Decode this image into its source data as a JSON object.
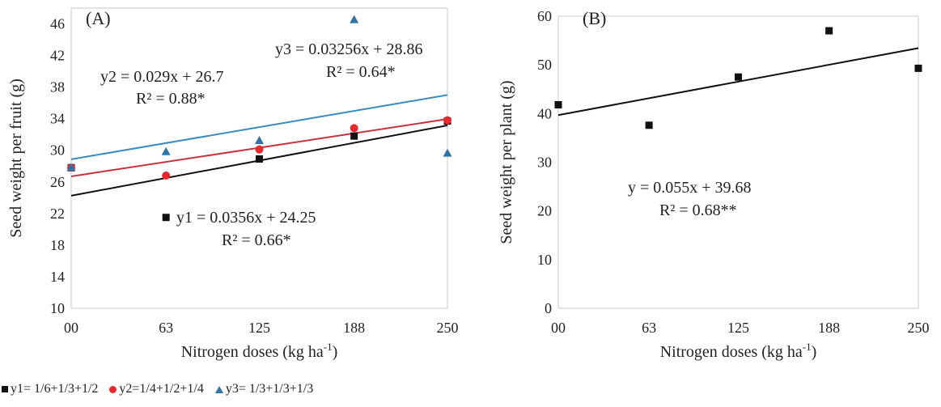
{
  "chart_data": [
    {
      "type": "scatter",
      "panel_label": "(A)",
      "xlabel": "Nitrogen doses (kg ha",
      "xlabel_sup": "-1",
      "xlabel_tail": ")",
      "ylabel": "Seed weight per fruit (g)",
      "x_tick_labels": [
        "00",
        "63",
        "125",
        "188",
        "250"
      ],
      "x_ticks": [
        0,
        63,
        125,
        188,
        250
      ],
      "xlim": [
        0,
        250
      ],
      "ylim": [
        10,
        48
      ],
      "y_ticks": [
        10,
        14,
        18,
        22,
        26,
        30,
        34,
        38,
        42,
        46
      ],
      "grid": false,
      "series": [
        {
          "name": "y1= 1/6+1/3+1/2",
          "marker": "square",
          "color": "#111111",
          "trend_color": "#111111",
          "x": [
            0,
            63,
            125,
            188,
            250
          ],
          "y": [
            27.8,
            21.5,
            28.9,
            31.8,
            33.7
          ],
          "trend": {
            "slope": 0.0356,
            "intercept": 24.25
          }
        },
        {
          "name": "y2=1/4+1/2+1/4",
          "marker": "circle",
          "color": "#e8282c",
          "trend_color": "#c8333b",
          "x": [
            0,
            63,
            125,
            188,
            250
          ],
          "y": [
            27.8,
            26.8,
            30.1,
            32.8,
            33.8
          ],
          "trend": {
            "slope": 0.029,
            "intercept": 26.7
          }
        },
        {
          "name": "y3= 1/3+1/3+1/3",
          "marker": "triangle",
          "color": "#2e74a6",
          "trend_color": "#3a8bbf",
          "x": [
            0,
            63,
            125,
            188,
            250
          ],
          "y": [
            27.8,
            29.8,
            31.2,
            46.5,
            29.6
          ],
          "trend": {
            "slope": 0.03256,
            "intercept": 28.86
          }
        }
      ],
      "annotations": [
        {
          "id": "y2-eq",
          "line1": "y2 = 0.029x + 26.7",
          "line2": "R² = 0.88*"
        },
        {
          "id": "y3-eq",
          "line1": "y3 = 0.03256x + 28.86",
          "line2": "R² = 0.64*"
        },
        {
          "id": "y1-eq",
          "line1": "y1 = 0.0356x + 24.25",
          "line2": "R² = 0.66*"
        }
      ]
    },
    {
      "type": "scatter",
      "panel_label": "(B)",
      "xlabel": "Nitrogen doses (kg ha",
      "xlabel_sup": "-1",
      "xlabel_tail": ")",
      "ylabel": "Seed weight per plant (g)",
      "x_tick_labels": [
        "00",
        "63",
        "125",
        "188",
        "250"
      ],
      "x_ticks": [
        0,
        63,
        125,
        188,
        250
      ],
      "xlim": [
        0,
        250
      ],
      "ylim": [
        0,
        60
      ],
      "y_ticks": [
        0,
        10,
        20,
        30,
        40,
        50,
        60
      ],
      "grid": false,
      "series": [
        {
          "name": "",
          "marker": "square",
          "color": "#111111",
          "trend_color": "#111111",
          "x": [
            0,
            63,
            125,
            188,
            250
          ],
          "y": [
            41.8,
            37.6,
            47.5,
            57.0,
            49.3
          ],
          "trend": {
            "slope": 0.055,
            "intercept": 39.68
          }
        }
      ],
      "annotations": [
        {
          "id": "eq",
          "line1": "y = 0.055x + 39.68",
          "line2": "R² = 0.68**"
        }
      ]
    }
  ],
  "legend": [
    {
      "label": "y1= 1/6+1/3+1/2",
      "marker": "square",
      "color": "#111111"
    },
    {
      "label": "y2=1/4+1/2+1/4",
      "marker": "circle",
      "color": "#e8282c"
    },
    {
      "label": "y3= 1/3+1/3+1/3",
      "marker": "triangle",
      "color": "#2e74a6"
    }
  ]
}
